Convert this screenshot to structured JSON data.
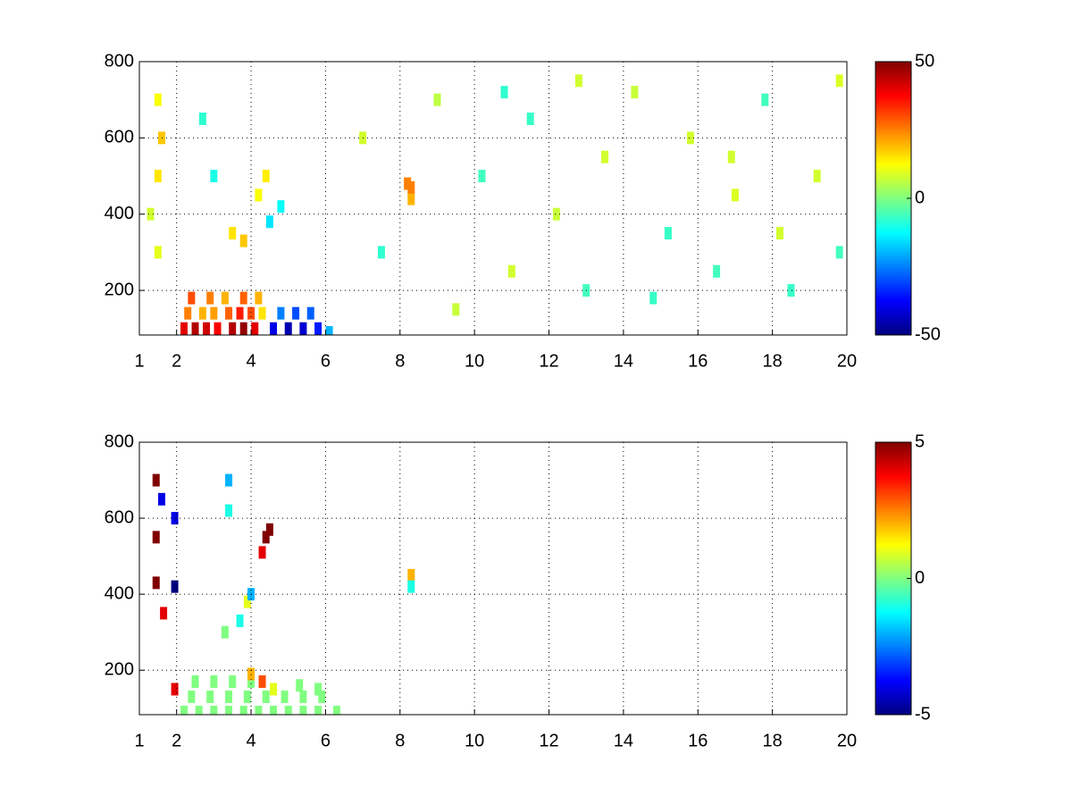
{
  "chart_data": [
    {
      "type": "heatmap",
      "colormap": "jet",
      "grid": true,
      "xlim": [
        1,
        20
      ],
      "xticks": [
        1,
        2,
        4,
        6,
        8,
        10,
        12,
        14,
        16,
        18,
        20
      ],
      "ylim": [
        83,
        800
      ],
      "yticks": [
        200,
        400,
        600,
        800
      ],
      "clim": [
        -50,
        50
      ],
      "cticks": [
        -50,
        0,
        50
      ],
      "x": [
        2.2,
        2.5,
        2.8,
        3.1,
        3.5,
        3.8,
        4.1,
        2.3,
        2.7,
        3.0,
        3.4,
        3.7,
        4.0,
        4.3,
        2.4,
        2.9,
        3.3,
        3.8,
        4.2,
        4.6,
        5.0,
        5.4,
        5.8,
        4.8,
        5.2,
        5.6,
        6.1,
        1.5,
        1.5,
        1.5,
        1.6,
        1.3,
        2.7,
        3.0,
        3.5,
        3.8,
        4.2,
        4.4,
        4.5,
        4.8,
        8.3,
        8.3,
        8.2,
        7.0,
        7.5,
        9.0,
        10.2,
        11.0,
        11.5,
        12.2,
        13.0,
        13.5,
        14.3,
        15.2,
        15.8,
        16.5,
        17.0,
        17.8,
        18.5,
        19.2,
        19.8,
        19.8,
        9.5,
        10.8,
        12.8,
        14.8,
        16.9,
        18.2
      ],
      "y": [
        100,
        100,
        100,
        100,
        100,
        100,
        100,
        140,
        140,
        140,
        140,
        140,
        140,
        140,
        180,
        180,
        180,
        180,
        180,
        100,
        100,
        100,
        100,
        140,
        140,
        140,
        90,
        700,
        500,
        300,
        600,
        400,
        650,
        500,
        350,
        330,
        450,
        500,
        380,
        420,
        440,
        470,
        480,
        600,
        300,
        700,
        500,
        250,
        650,
        400,
        200,
        550,
        720,
        350,
        600,
        250,
        450,
        700,
        200,
        500,
        300,
        750,
        150,
        720,
        750,
        180,
        550,
        350
      ],
      "values": [
        40,
        45,
        42,
        38,
        45,
        48,
        40,
        25,
        20,
        22,
        28,
        35,
        30,
        15,
        30,
        25,
        20,
        28,
        20,
        -40,
        -45,
        -42,
        -35,
        -25,
        -30,
        -28,
        -20,
        12,
        15,
        10,
        18,
        8,
        -8,
        -10,
        15,
        18,
        12,
        14,
        -15,
        -12,
        20,
        25,
        25,
        8,
        -8,
        6,
        -6,
        8,
        -7,
        7,
        -6,
        8,
        7,
        -7,
        8,
        -6,
        9,
        -6,
        -7,
        8,
        -6,
        9,
        7,
        -8,
        8,
        -7,
        8,
        8
      ]
    },
    {
      "type": "heatmap",
      "colormap": "jet",
      "grid": true,
      "xlim": [
        1,
        20
      ],
      "xticks": [
        1,
        2,
        4,
        6,
        8,
        10,
        12,
        14,
        16,
        18,
        20
      ],
      "ylim": [
        83,
        800
      ],
      "yticks": [
        200,
        400,
        600,
        800
      ],
      "clim": [
        -5,
        5
      ],
      "cticks": [
        -5,
        0,
        5
      ],
      "x": [
        2.2,
        2.6,
        3.0,
        3.4,
        3.8,
        4.2,
        4.6,
        5.0,
        5.4,
        5.8,
        6.3,
        2.4,
        2.9,
        3.4,
        3.9,
        4.4,
        4.9,
        5.4,
        5.9,
        2.5,
        3.0,
        3.5,
        4.0,
        4.6,
        5.3,
        5.8,
        4.0,
        1.45,
        1.45,
        1.45,
        1.6,
        1.65,
        1.95,
        1.95,
        1.95,
        3.4,
        3.4,
        4.4,
        4.5,
        4.3,
        3.7,
        3.9,
        4.0,
        3.3,
        8.3,
        8.3,
        4.3
      ],
      "y": [
        90,
        90,
        90,
        90,
        90,
        90,
        90,
        90,
        90,
        90,
        90,
        130,
        130,
        130,
        130,
        130,
        130,
        130,
        130,
        170,
        170,
        170,
        170,
        150,
        160,
        150,
        190,
        700,
        550,
        430,
        650,
        350,
        600,
        420,
        150,
        700,
        620,
        550,
        570,
        510,
        330,
        380,
        400,
        300,
        450,
        420,
        170
      ],
      "values": [
        0,
        0,
        0,
        0,
        0,
        0,
        0,
        0,
        0,
        0,
        0,
        0,
        0,
        0,
        0,
        0,
        0,
        0,
        0,
        0,
        0,
        0,
        0,
        1,
        0,
        0,
        2,
        5,
        5,
        5,
        -4,
        4,
        -4,
        -5,
        4,
        -2,
        -1,
        5,
        5,
        4,
        -1,
        1,
        -2,
        0,
        2,
        -1,
        3
      ]
    }
  ]
}
